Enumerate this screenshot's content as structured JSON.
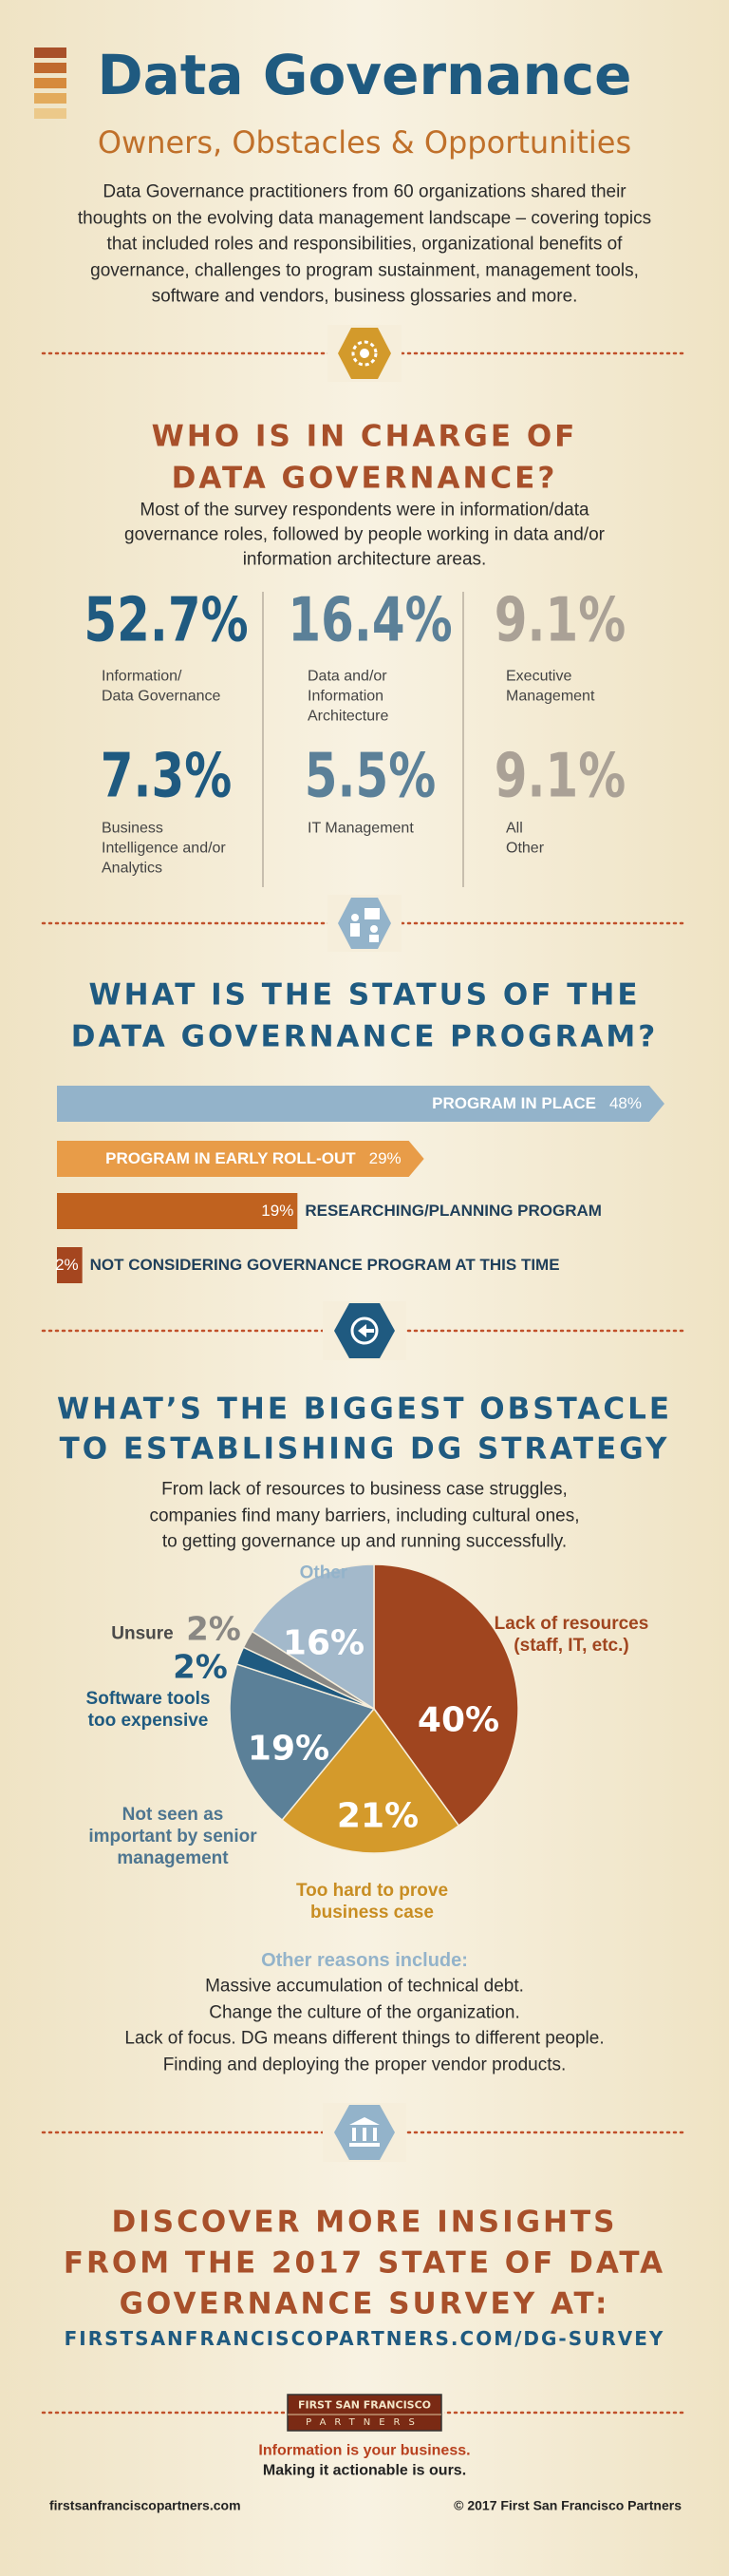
{
  "header": {
    "title": "Data Governance",
    "subtitle": "Owners, Obstacles & Opportunities",
    "intro": [
      "Data Governance practitioners from 60 organizations shared their",
      "thoughts on the evolving data management landscape – covering topics",
      "that included roles and responsibilities, organizational benefits of",
      "governance, challenges to program sustainment, management tools,",
      "software and vendors, business glossaries and more."
    ]
  },
  "roles": {
    "heading": [
      "WHO IS IN CHARGE OF",
      "DATA GOVERNANCE?"
    ],
    "text": [
      "Most of the survey respondents were in information/data",
      "governance roles, followed by people working in data and/or",
      "information architecture areas."
    ],
    "stats": [
      {
        "value": "52.7%",
        "label": [
          "Information/",
          "Data Governance"
        ]
      },
      {
        "value": "16.4%",
        "label": [
          "Data and/or",
          "Information",
          "Architecture"
        ]
      },
      {
        "value": "9.1%",
        "label": [
          "Executive",
          "Management"
        ]
      },
      {
        "value": "7.3%",
        "label": [
          "Business",
          "Intelligence and/or",
          "Analytics"
        ]
      },
      {
        "value": "5.5%",
        "label": [
          "IT Management"
        ]
      },
      {
        "value": "9.1%",
        "label": [
          "All",
          "Other"
        ]
      }
    ]
  },
  "chart_data": [
    {
      "type": "bar",
      "title": [
        "WHAT IS THE STATUS OF THE",
        "DATA GOVERNANCE PROGRAM?"
      ],
      "categories": [
        "PROGRAM IN PLACE",
        "PROGRAM IN EARLY ROLL-OUT",
        "RESEARCHING/PLANNING PROGRAM",
        "NOT CONSIDERING GOVERNANCE PROGRAM AT THIS TIME"
      ],
      "values": [
        48,
        29,
        19,
        2
      ],
      "value_labels": [
        "48%",
        "29%",
        "19%",
        "2%"
      ],
      "colors": [
        "#93b3ca",
        "#e89c48",
        "#c0621f",
        "#a5461f"
      ]
    },
    {
      "type": "pie",
      "title": [
        "WHAT’S THE BIGGEST OBSTACLE",
        "TO ESTABLISHING DG STRATEGY"
      ],
      "subtitle": [
        "From lack of resources to business case struggles,",
        "companies find many barriers, including cultural ones,",
        "to getting governance up and running successfully."
      ],
      "categories": [
        "Lack of resources (staff, IT, etc.)",
        "Too hard to prove business case",
        "Not seen as important by senior management",
        "Software tools too expensive",
        "Unsure",
        "Other"
      ],
      "values": [
        40,
        21,
        19,
        2,
        2,
        16
      ],
      "value_labels": [
        "40%",
        "21%",
        "19%",
        "2%",
        "2%",
        "16%"
      ],
      "colors": [
        "#a0451f",
        "#d49a2b",
        "#5b8098",
        "#1f5a80",
        "#8a8884",
        "#a3b9cb"
      ]
    }
  ],
  "other_reasons": {
    "heading": "Other reasons include:",
    "items": [
      "Massive accumulation of technical debt.",
      "Change the culture of the organization.",
      "Lack of focus. DG means different things to different people.",
      "Finding and deploying the proper vendor products."
    ]
  },
  "cta": {
    "heading": [
      "DISCOVER MORE INSIGHTS",
      "FROM THE 2017 STATE OF DATA",
      "GOVERNANCE SURVEY AT:"
    ],
    "url": "FIRSTSANFRANCISCOPARTNERS.COM/DG-SURVEY"
  },
  "logo": {
    "line1": "FIRST SAN FRANCISCO",
    "line2": "PARTNERS"
  },
  "tagline": [
    "Information is your business.",
    "Making it actionable is ours."
  ],
  "footer": {
    "website": "firstsanfranciscopartners.com",
    "copyright": "© 2017 First San Francisco Partners"
  }
}
